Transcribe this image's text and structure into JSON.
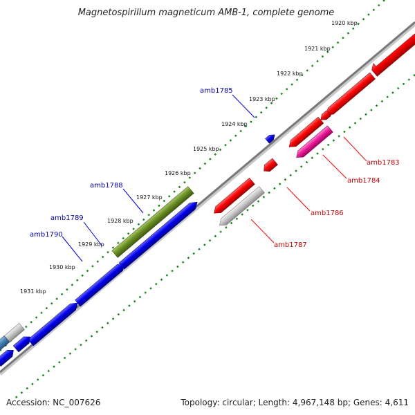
{
  "title": "Magnetospirillum magneticum AMB-1, complete genome",
  "footer": {
    "accession": "Accession: NC_007626",
    "summary": "Topology: circular; Length: 4,967,148 bp; Genes: 4,611"
  },
  "ruler": {
    "labels": [
      "1920 kbp",
      "1921 kbp",
      "1922 kbp",
      "1923 kbp",
      "1924 kbp",
      "1925 kbp",
      "1926 kbp",
      "1927 kbp",
      "1928 kbp",
      "1929 kbp",
      "1930 kbp",
      "1931 kbp"
    ]
  },
  "genes": [
    {
      "name": "amb1783",
      "strand": "reverse",
      "color": "#e00000"
    },
    {
      "name": "amb1784",
      "strand": "reverse",
      "color": "#e8189a"
    },
    {
      "name": "amb1785",
      "strand": "forward",
      "color": "#0000dd"
    },
    {
      "name": "amb1786",
      "strand": "reverse",
      "color": "#e00000"
    },
    {
      "name": "amb1787",
      "strand": "reverse",
      "color": "#c0c0c0"
    },
    {
      "name": "amb1788",
      "strand": "forward",
      "color": "#5a8a1e"
    },
    {
      "name": "amb1789",
      "strand": "forward",
      "color": "#0000dd"
    },
    {
      "name": "amb1790",
      "strand": "forward",
      "color": "#0000dd"
    }
  ],
  "colors": {
    "backbone": "#777777",
    "ruler_dots": "#118811",
    "forward_gene": "#0000dd",
    "reverse_gene": "#e00000",
    "label_blue": "#0000bb",
    "label_red": "#cc0000"
  }
}
